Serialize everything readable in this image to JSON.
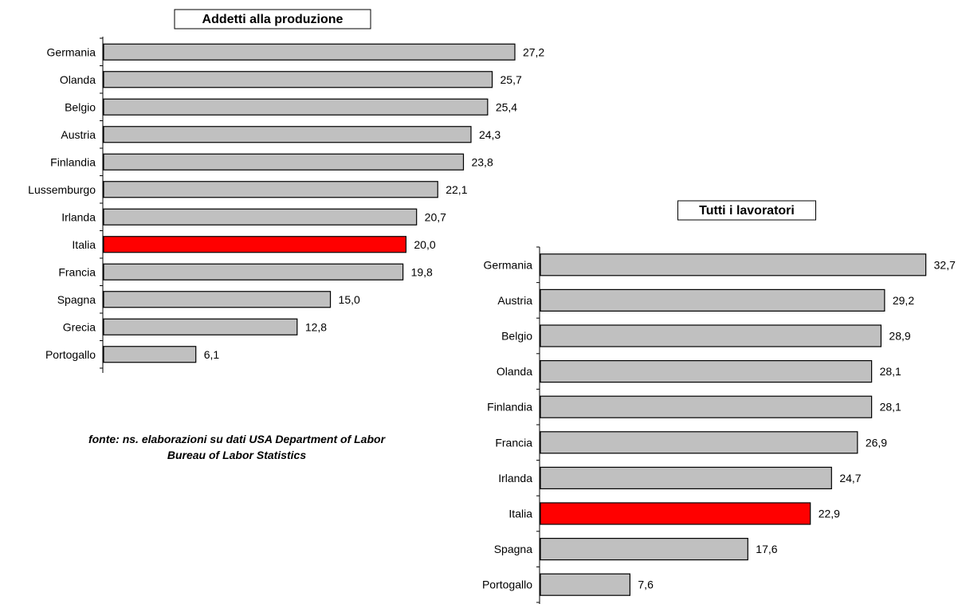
{
  "source_note": {
    "line1": "fonte: ns. elaborazioni su dati USA Department of Labor",
    "line2": "Bureau of Labor Statistics"
  },
  "chart_data": [
    {
      "type": "bar",
      "orientation": "horizontal",
      "title": "Addetti alla produzione",
      "categories": [
        "Germania",
        "Olanda",
        "Belgio",
        "Austria",
        "Finlandia",
        "Lussemburgo",
        "Irlanda",
        "Italia",
        "Francia",
        "Spagna",
        "Grecia",
        "Portogallo"
      ],
      "values": [
        27.2,
        25.7,
        25.4,
        24.3,
        23.8,
        22.1,
        20.7,
        20.0,
        19.8,
        15.0,
        12.8,
        6.1
      ],
      "value_labels": [
        "27,2",
        "25,7",
        "25,4",
        "24,3",
        "23,8",
        "22,1",
        "20,7",
        "20,0",
        "19,8",
        "15,0",
        "12,8",
        "6,1"
      ],
      "highlight": "Italia",
      "colors": {
        "bar": "#c0c0c0",
        "highlight": "#ff0000",
        "outline": "#000000"
      },
      "grid": false,
      "legend": "none"
    },
    {
      "type": "bar",
      "orientation": "horizontal",
      "title": "Tutti i lavoratori",
      "categories": [
        "Germania",
        "Austria",
        "Belgio",
        "Olanda",
        "Finlandia",
        "Francia",
        "Irlanda",
        "Italia",
        "Spagna",
        "Portogallo"
      ],
      "values": [
        32.7,
        29.2,
        28.9,
        28.1,
        28.1,
        26.9,
        24.7,
        22.9,
        17.6,
        7.6
      ],
      "value_labels": [
        "32,7",
        "29,2",
        "28,9",
        "28,1",
        "28,1",
        "26,9",
        "24,7",
        "22,9",
        "17,6",
        "7,6"
      ],
      "highlight": "Italia",
      "colors": {
        "bar": "#c0c0c0",
        "highlight": "#ff0000",
        "outline": "#000000"
      },
      "grid": false,
      "legend": "none"
    }
  ]
}
